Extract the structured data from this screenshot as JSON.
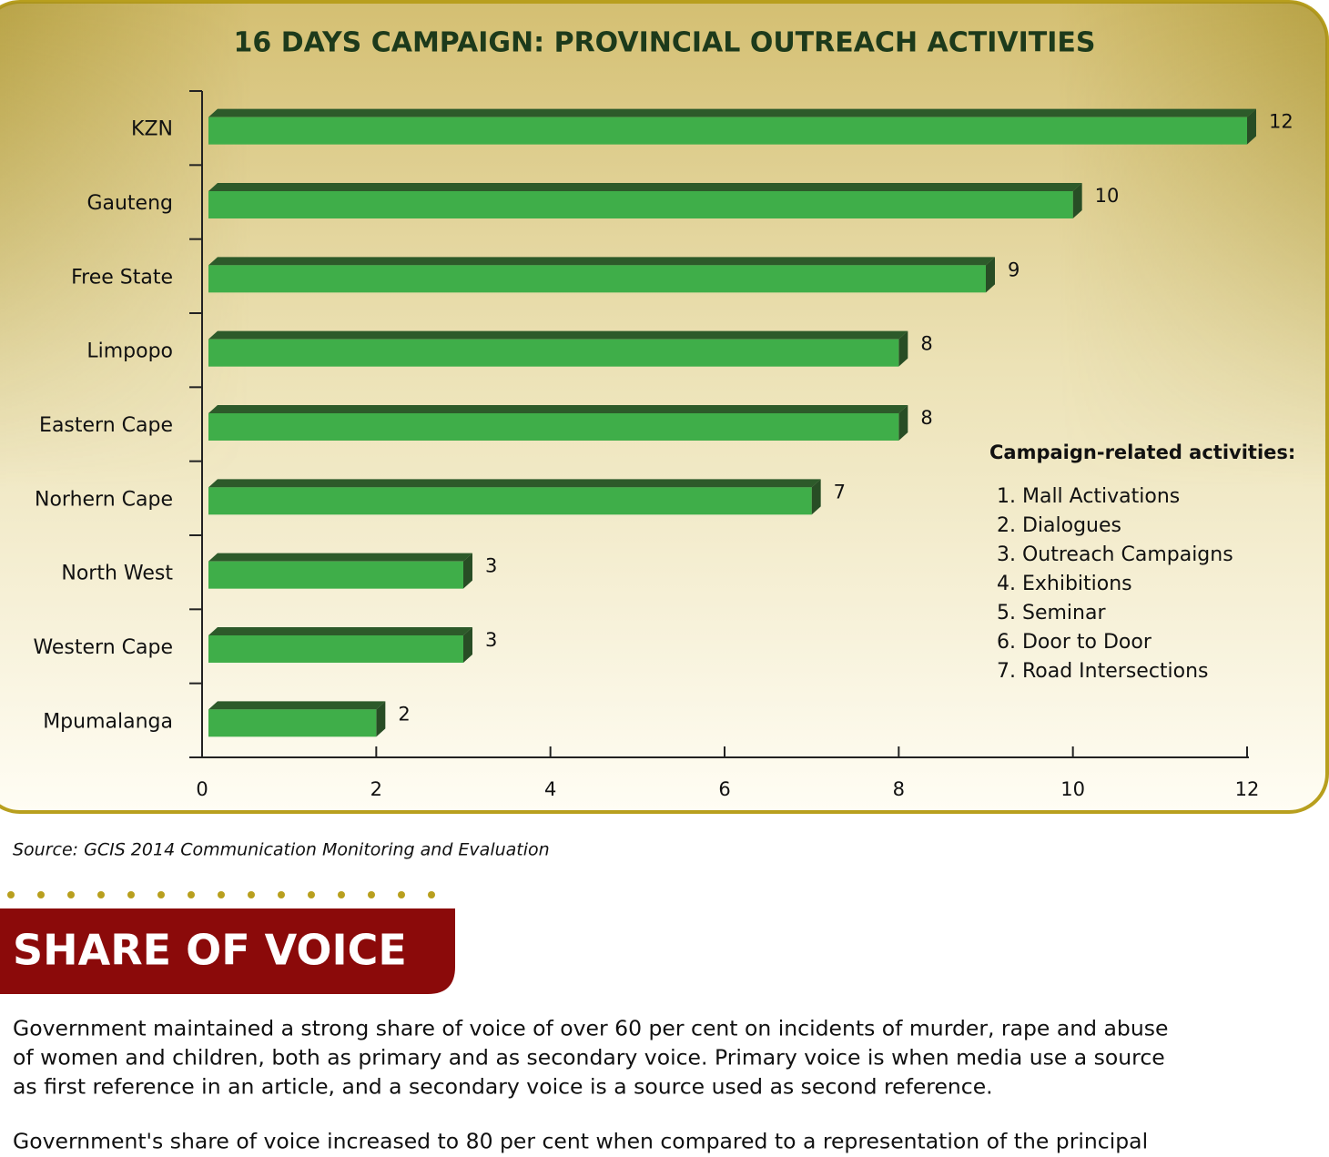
{
  "chart_data": {
    "type": "bar",
    "orientation": "horizontal",
    "title": "16 DAYS CAMPAIGN: PROVINCIAL OUTREACH ACTIVITIES",
    "categories": [
      "KZN",
      "Gauteng",
      "Free State",
      "Limpopo",
      "Eastern Cape",
      "Norhern Cape",
      "North West",
      "Western Cape",
      "Mpumalanga"
    ],
    "values": [
      12,
      10,
      9,
      8,
      8,
      7,
      3,
      3,
      2
    ],
    "color": "#3fae49",
    "xlim": [
      0,
      12
    ],
    "xticks": [
      0,
      2,
      4,
      6,
      8,
      10,
      12
    ],
    "annotation": {
      "title": "Campaign-related activities:",
      "items": [
        "1. Mall Activations",
        "2. Dialogues",
        "3. Outreach Campaigns",
        "4. Exhibitions",
        "5. Seminar",
        "6. Door to Door",
        "7. Road Intersections"
      ]
    }
  },
  "source": "Source: GCIS 2014 Communication Monitoring and Evaluation",
  "section": {
    "heading": "SHARE OF VOICE",
    "paragraphs": [
      [
        "Government maintained a strong share of voice of over 60 per cent on incidents of murder, rape and abuse",
        "of women and children, both as primary and as secondary voice. Primary voice is when media use a source",
        "as first reference in an article, and a secondary voice is a source used as second reference."
      ],
      [
        "Government's share of voice increased to 80 per cent when compared to a representation of the principal"
      ]
    ]
  }
}
